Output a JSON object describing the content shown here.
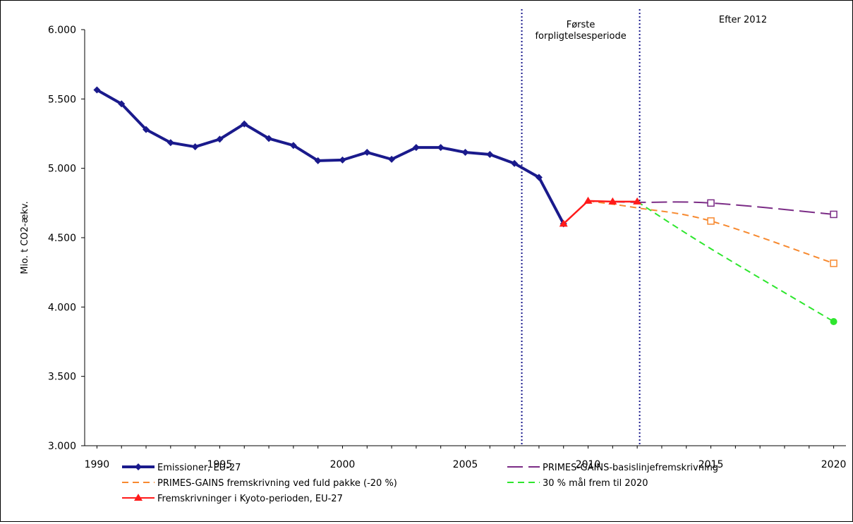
{
  "chart_data": {
    "type": "line",
    "ylabel": "Mio. t CO2-ækv.",
    "xlabel": "",
    "xlim": [
      1989.5,
      2020.5
    ],
    "ylim": [
      3000,
      6000
    ],
    "x_ticks": [
      1990,
      1995,
      2000,
      2005,
      2010,
      2015,
      2020
    ],
    "y_ticks": [
      3000,
      3500,
      4000,
      4500,
      5000,
      5500,
      6000
    ],
    "x_tick_labels": [
      "1990",
      "1995",
      "2000",
      "2005",
      "2010",
      "2015",
      "2020"
    ],
    "y_tick_labels": [
      "3.000",
      "3.500",
      "4.000",
      "4.500",
      "5.000",
      "5.500",
      "6.000"
    ],
    "grid": false,
    "legend_position": "bottom",
    "period_lines": [
      2007.3,
      2012.1
    ],
    "period_labels": [
      {
        "text_lines": [
          "Første",
          "forpligtelsesperiode"
        ]
      },
      {
        "text_lines": [
          "Efter 2012"
        ]
      }
    ],
    "series": [
      {
        "name": "Emissioner, EU-27",
        "color": "#1a1a8c",
        "style": "solid",
        "marker": "diamond",
        "x": [
          1990,
          1991,
          1992,
          1993,
          1994,
          1995,
          1996,
          1997,
          1998,
          1999,
          2000,
          2001,
          2002,
          2003,
          2004,
          2005,
          2006,
          2007,
          2008,
          2009
        ],
        "values": [
          5565,
          5465,
          5280,
          5185,
          5155,
          5210,
          5320,
          5215,
          5165,
          5055,
          5060,
          5115,
          5065,
          5150,
          5150,
          5115,
          5100,
          5035,
          4935,
          4600
        ]
      },
      {
        "name": "PRIMES-GAINS-basislinjefremskrivning",
        "color": "#7b2c86",
        "style": "longdash",
        "marker": "open-square",
        "x": [
          2010,
          2012,
          2015,
          2020
        ],
        "values": [
          4765,
          4755,
          4750,
          4668
        ]
      },
      {
        "name": "PRIMES-GAINS  fremskrivning ved fuld pakke (-20 %)",
        "color": "#f7892f",
        "style": "dash",
        "marker": "open-square",
        "x": [
          2010,
          2012,
          2015,
          2020
        ],
        "values": [
          4765,
          4715,
          4620,
          4315
        ]
      },
      {
        "name": "30 % mål frem til 2020",
        "color": "#2ee62e",
        "style": "dash",
        "marker": "dot",
        "x": [
          2012,
          2015,
          2020
        ],
        "values": [
          4760,
          4420,
          3895
        ]
      },
      {
        "name": "Fremskrivninger i Kyoto-perioden, EU-27",
        "color": "#ff1a1a",
        "style": "solid",
        "marker": "triangle",
        "x": [
          2009,
          2010,
          2011,
          2012
        ],
        "values": [
          4600,
          4765,
          4760,
          4760
        ]
      }
    ]
  }
}
